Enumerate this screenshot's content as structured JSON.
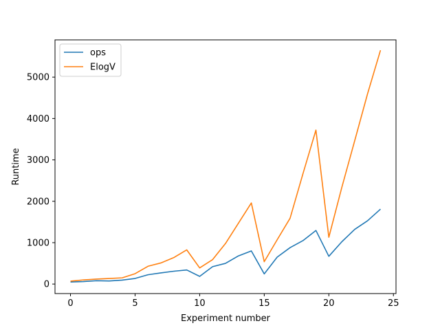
{
  "chart_data": {
    "type": "line",
    "title": "",
    "xlabel": "Experiment number",
    "ylabel": "Runtime",
    "xlim": [
      -1.2,
      25.2
    ],
    "ylim": [
      -230,
      5900
    ],
    "xticks": [
      0,
      5,
      10,
      15,
      20,
      25
    ],
    "yticks": [
      0,
      1000,
      2000,
      3000,
      4000,
      5000
    ],
    "grid": false,
    "legend_position": "top-left",
    "x": [
      0,
      1,
      2,
      3,
      4,
      5,
      6,
      7,
      8,
      9,
      10,
      11,
      12,
      13,
      14,
      15,
      16,
      17,
      18,
      19,
      20,
      21,
      22,
      23,
      24
    ],
    "series": [
      {
        "name": "ops",
        "color": "#1f77b4",
        "values": [
          50,
          60,
          80,
          75,
          95,
          135,
          225,
          270,
          310,
          340,
          185,
          420,
          500,
          680,
          800,
          245,
          650,
          880,
          1050,
          1295,
          670,
          1020,
          1320,
          1530,
          1810
        ]
      },
      {
        "name": "ElogV",
        "color": "#ff7f0e",
        "values": [
          70,
          100,
          120,
          135,
          150,
          250,
          430,
          510,
          640,
          825,
          390,
          590,
          980,
          1470,
          1960,
          540,
          1070,
          1590,
          2670,
          3720,
          1130,
          2330,
          3460,
          4600,
          5650
        ]
      }
    ]
  }
}
